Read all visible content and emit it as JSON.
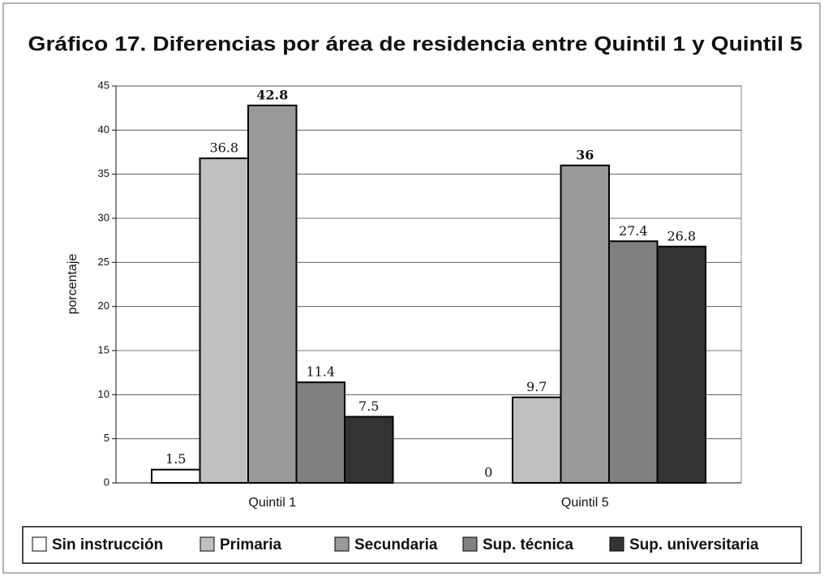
{
  "chart_data": {
    "type": "bar",
    "title": "Gráfico 17. Diferencias por área de residencia entre Quintil 1 y Quintil 5",
    "y_label": "porcentaje",
    "categories": [
      "Quintil 1",
      "Quintil 5"
    ],
    "series": [
      {
        "name": "Sin instrucción",
        "color": "#ffffff",
        "values": [
          1.5,
          0
        ]
      },
      {
        "name": "Primaria",
        "color": "#c0c0c0",
        "values": [
          36.8,
          9.7
        ]
      },
      {
        "name": "Secundaria",
        "color": "#999999",
        "values": [
          42.8,
          36
        ]
      },
      {
        "name": "Sup. técnica",
        "color": "#808080",
        "values": [
          11.4,
          27.4
        ]
      },
      {
        "name": "Sup. universitaria",
        "color": "#333333",
        "values": [
          7.5,
          26.8
        ]
      }
    ],
    "ylim": [
      0,
      45
    ],
    "yticks": [
      0,
      5,
      10,
      15,
      20,
      25,
      30,
      35,
      40,
      45
    ],
    "grid": true,
    "legend": "bottom"
  }
}
